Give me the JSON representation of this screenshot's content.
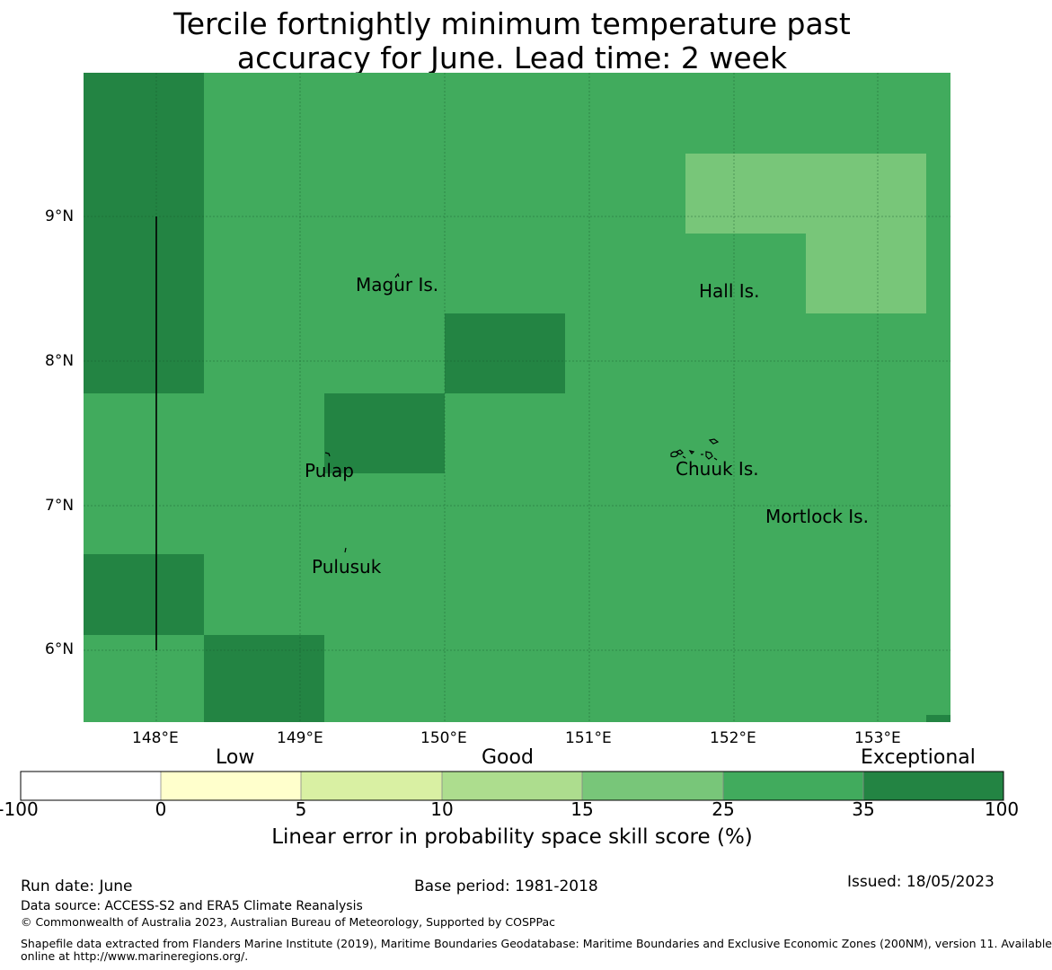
{
  "title": {
    "line1": "Tercile fortnightly minimum temperature past",
    "line2": "accuracy for June. Lead time: 2 week"
  },
  "map": {
    "lon_ticks": [
      "148°E",
      "149°E",
      "150°E",
      "151°E",
      "152°E",
      "153°E"
    ],
    "lat_ticks": [
      "9°N",
      "8°N",
      "7°N",
      "6°N"
    ],
    "lon_range": [
      147.5,
      153.5
    ],
    "lat_range": [
      5.5,
      10.0
    ],
    "places": [
      {
        "name": "Magur Is."
      },
      {
        "name": "Hall Is."
      },
      {
        "name": "Pulap"
      },
      {
        "name": "Chuuk Is."
      },
      {
        "name": "Mortlock Is."
      },
      {
        "name": "Pulusuk"
      }
    ],
    "colors": {
      "exceptional": "#238443",
      "good_high": "#41ab5d",
      "good_mid": "#78c679"
    }
  },
  "colorbar": {
    "category_labels": {
      "low": "Low",
      "good": "Good",
      "exceptional": "Exceptional"
    },
    "ticks": [
      "-100",
      "0",
      "5",
      "10",
      "15",
      "25",
      "35",
      "100"
    ],
    "colors": [
      "#ffffff",
      "#ffffcc",
      "#d9f0a3",
      "#addd8e",
      "#78c679",
      "#41ab5d",
      "#238443"
    ],
    "axis_label": "Linear error in probability space skill score (%)"
  },
  "footer": {
    "run_date": "Run date: June",
    "base_period": "Base period: 1981-2018",
    "issued": "Issued: 18/05/2023",
    "data_source": "Data source: ACCESS-S2 and ERA5 Climate Reanalysis",
    "copyright": "© Commonwealth of Australia 2023, Australian Bureau of Meteorology, Supported by COSPPac",
    "shapefile_line1": "Shapefile data extracted from Flanders Marine Institute (2019), Maritime Boundaries Geodatabase: Maritime Boundaries and Exclusive Economic Zones (200NM), version 11. Available",
    "shapefile_line2": "online at http://www.marineregions.org/."
  }
}
